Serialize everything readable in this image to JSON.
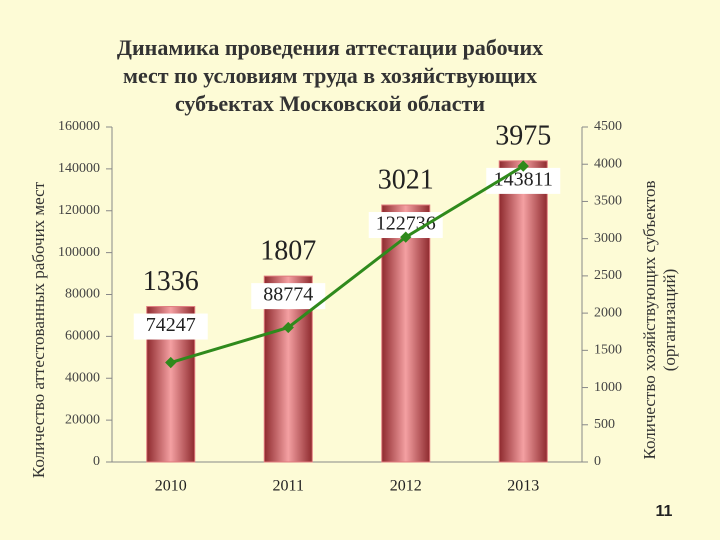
{
  "chart_data": {
    "type": "bar_line",
    "title": [
      "Динамика проведения аттестации рабочих",
      "мест по условиям труда в хозяйствующих",
      "субъектах Московской области"
    ],
    "y_label": "Количество аттестованных рабочих мест",
    "y2_label": [
      "Количество хозяйствующих субъектов",
      "(организаций)"
    ],
    "categories": [
      "2010",
      "2011",
      "2012",
      "2013"
    ],
    "series": [
      {
        "type": "bar",
        "color": "#e07a7e",
        "values": [
          74247,
          88774,
          122736,
          143811
        ]
      },
      {
        "type": "line",
        "axis": "y2",
        "color": "#2f8a1c",
        "values": [
          1336,
          1807,
          3021,
          3975
        ]
      }
    ],
    "ylim": [
      0,
      160000
    ],
    "yticks": [
      0,
      20000,
      40000,
      60000,
      80000,
      100000,
      120000,
      140000,
      160000
    ],
    "y2lim": [
      0,
      4500
    ],
    "y2ticks": [
      0,
      500,
      1000,
      1500,
      2000,
      2500,
      3000,
      3500,
      4000,
      4500
    ]
  },
  "slide_number": "11"
}
